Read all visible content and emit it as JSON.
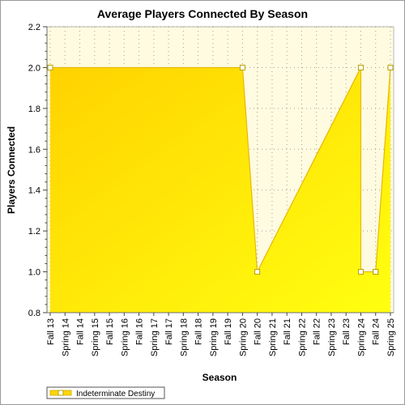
{
  "chart_data": {
    "type": "area",
    "title": "Average Players Connected By Season",
    "xlabel": "Season",
    "ylabel": "Players Connected",
    "ylim": [
      0.8,
      2.2
    ],
    "yticks": [
      "0.8",
      "1.0",
      "1.2",
      "1.4",
      "1.6",
      "1.8",
      "2.0",
      "2.2"
    ],
    "categories": [
      "Fall 13",
      "Spring 14",
      "Fall 14",
      "Spring 15",
      "Fall 15",
      "Spring 16",
      "Fall 16",
      "Spring 17",
      "Fall 17",
      "Spring 18",
      "Fall 18",
      "Spring 19",
      "Fall 19",
      "Spring 20",
      "Fall 20",
      "Spring 21",
      "Fall 21",
      "Spring 22",
      "Fall 22",
      "Spring 23",
      "Fall 23",
      "Spring 24",
      "Fall 24",
      "Spring 25"
    ],
    "series": [
      {
        "name": "Indeterminate Destiny",
        "color": "#ffd700",
        "points": [
          {
            "x": "Fall 13",
            "y": 2.0
          },
          {
            "x": "Spring 20",
            "y": 2.0
          },
          {
            "x": "Fall 20",
            "y": 1.0
          },
          {
            "x": "Spring 24",
            "y": 2.0
          },
          {
            "x": "Spring 24",
            "y": 1.0
          },
          {
            "x": "Fall 24",
            "y": 1.0
          },
          {
            "x": "Fall 24",
            "y": 1.0
          },
          {
            "x": "Spring 25",
            "y": 2.0
          }
        ]
      }
    ],
    "grid": true,
    "legend_position": "bottom-left",
    "plot_background": "#fffbe0"
  }
}
